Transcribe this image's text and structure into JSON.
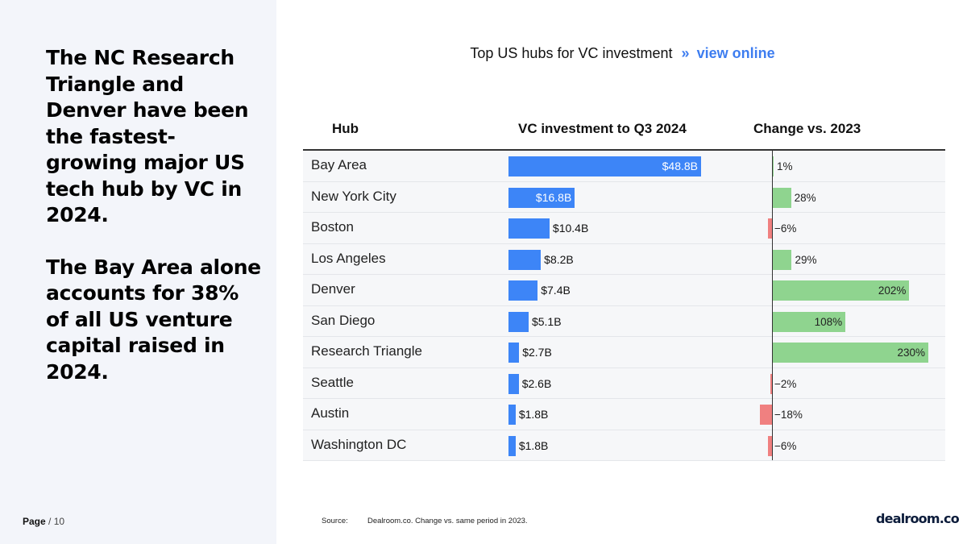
{
  "headline": {
    "paragraph1": "The NC Research Triangle and Denver have been the fastest-growing major US tech hub by VC in 2024.",
    "paragraph2": "The Bay Area alone accounts for 38% of all US venture capital raised in 2024."
  },
  "footer": {
    "page_word": "Page",
    "page_suffix": "/ 10",
    "source_label": "Source:",
    "source_text": "Dealroom.co. Change vs. same period in  2023.",
    "logo": "dealroom.co"
  },
  "colors": {
    "investment_bar": "#3d85f7",
    "positive_change": "#8fd48f",
    "negative_change": "#f08080",
    "link": "#3d7df0"
  },
  "chart_data": {
    "type": "table",
    "title": "Top US hubs for VC investment",
    "link_arrow": "»",
    "link_text": "view online",
    "columns": [
      "Hub",
      "VC investment to Q3 2024",
      "Change vs. 2023"
    ],
    "rows": [
      {
        "hub": "Bay Area",
        "investment": 48.8,
        "investment_label": "$48.8B",
        "change": 1,
        "change_label": "1%"
      },
      {
        "hub": "New York City",
        "investment": 16.8,
        "investment_label": "$16.8B",
        "change": 28,
        "change_label": "28%"
      },
      {
        "hub": "Boston",
        "investment": 10.4,
        "investment_label": "$10.4B",
        "change": -6,
        "change_label": "−6%"
      },
      {
        "hub": "Los Angeles",
        "investment": 8.2,
        "investment_label": "$8.2B",
        "change": 29,
        "change_label": "29%"
      },
      {
        "hub": "Denver",
        "investment": 7.4,
        "investment_label": "$7.4B",
        "change": 202,
        "change_label": "202%"
      },
      {
        "hub": "San Diego",
        "investment": 5.1,
        "investment_label": "$5.1B",
        "change": 108,
        "change_label": "108%"
      },
      {
        "hub": "Research Triangle",
        "investment": 2.7,
        "investment_label": "$2.7B",
        "change": 230,
        "change_label": "230%"
      },
      {
        "hub": "Seattle",
        "investment": 2.6,
        "investment_label": "$2.6B",
        "change": -2,
        "change_label": "−2%"
      },
      {
        "hub": "Austin",
        "investment": 1.8,
        "investment_label": "$1.8B",
        "change": -18,
        "change_label": "−18%"
      },
      {
        "hub": "Washington DC",
        "investment": 1.8,
        "investment_label": "$1.8B",
        "change": -6,
        "change_label": "−6%"
      }
    ]
  }
}
